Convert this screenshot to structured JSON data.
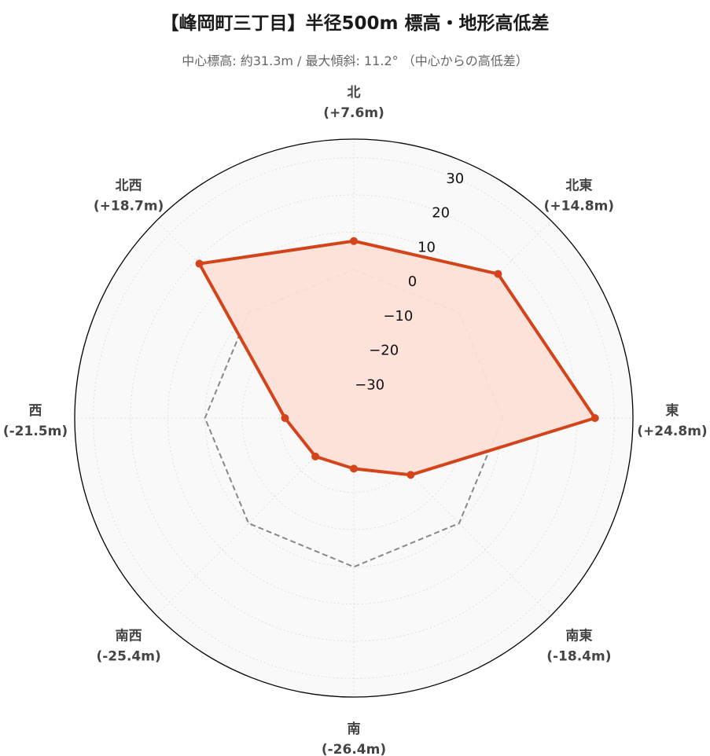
{
  "chart_data": {
    "type": "radar",
    "title": "【峰岡町三丁目】半径500m 標高・地形高低差",
    "subtitle": "中心標高: 約31.3m / 最大傾斜: 11.2° （中心からの高低差）",
    "directions": [
      {
        "name": "北",
        "value": 7.6,
        "label": "(+7.6m)"
      },
      {
        "name": "北東",
        "value": 14.8,
        "label": "(+14.8m)"
      },
      {
        "name": "東",
        "value": 24.8,
        "label": "(+24.8m)"
      },
      {
        "name": "南東",
        "value": -18.4,
        "label": "(-18.4m)"
      },
      {
        "name": "南",
        "value": -26.4,
        "label": "(-26.4m)"
      },
      {
        "name": "南西",
        "value": -25.4,
        "label": "(-25.4m)"
      },
      {
        "name": "西",
        "value": -21.5,
        "label": "(-21.5m)"
      },
      {
        "name": "北西",
        "value": 18.7,
        "label": "(+18.7m)"
      }
    ],
    "radial_ticks": [
      -30,
      -20,
      -10,
      0,
      10,
      20,
      30
    ],
    "rlim": [
      -40,
      35
    ],
    "reference_value": 0,
    "grid": true,
    "colors": {
      "series_line": "#d4441a",
      "series_fill": "#fde0d8",
      "reference_line": "#888888",
      "background": "#f9f9f9",
      "grid": "#dddddd",
      "outer_circle": "#000000"
    }
  }
}
